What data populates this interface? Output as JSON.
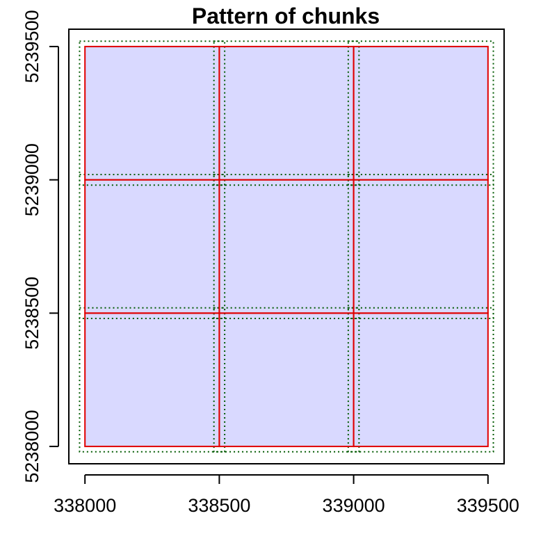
{
  "chart_data": {
    "type": "chunk_pattern",
    "title": "Pattern of chunks",
    "xlabel": "",
    "ylabel": "",
    "xlim": [
      337940,
      339560
    ],
    "ylim": [
      5237935,
      5239565
    ],
    "xticks": [
      338000,
      338500,
      339000,
      339500
    ],
    "yticks": [
      5238000,
      5238500,
      5239000,
      5239500
    ],
    "xtick_labels": [
      "338000",
      "338500",
      "339000",
      "339500"
    ],
    "ytick_labels": [
      "5238000",
      "5238500",
      "5239000",
      "5239500"
    ],
    "grid": false,
    "extent": {
      "xmin": 338000,
      "xmax": 339500,
      "ymin": 5238000,
      "ymax": 5239500
    },
    "chunk_x_breaks": [
      338000,
      338500,
      339000,
      339500
    ],
    "chunk_y_breaks": [
      5238000,
      5238500,
      5239000,
      5239500
    ],
    "buffer": 20,
    "chunks": [
      {
        "xmin": 338000,
        "xmax": 338500,
        "ymin": 5239000,
        "ymax": 5239500
      },
      {
        "xmin": 338500,
        "xmax": 339000,
        "ymin": 5239000,
        "ymax": 5239500
      },
      {
        "xmin": 339000,
        "xmax": 339500,
        "ymin": 5239000,
        "ymax": 5239500
      },
      {
        "xmin": 338000,
        "xmax": 338500,
        "ymin": 5238500,
        "ymax": 5239000
      },
      {
        "xmin": 338500,
        "xmax": 339000,
        "ymin": 5238500,
        "ymax": 5239000
      },
      {
        "xmin": 339000,
        "xmax": 339500,
        "ymin": 5238500,
        "ymax": 5239000
      },
      {
        "xmin": 338000,
        "xmax": 338500,
        "ymin": 5238000,
        "ymax": 5238500
      },
      {
        "xmin": 338500,
        "xmax": 339000,
        "ymin": 5238000,
        "ymax": 5238500
      },
      {
        "xmin": 339000,
        "xmax": 339500,
        "ymin": 5238000,
        "ymax": 5238500
      }
    ],
    "colors": {
      "fill": "#d9d9ff",
      "chunk_border": "#e00000",
      "buffer_border": "#005a00",
      "axis": "#000000"
    }
  }
}
